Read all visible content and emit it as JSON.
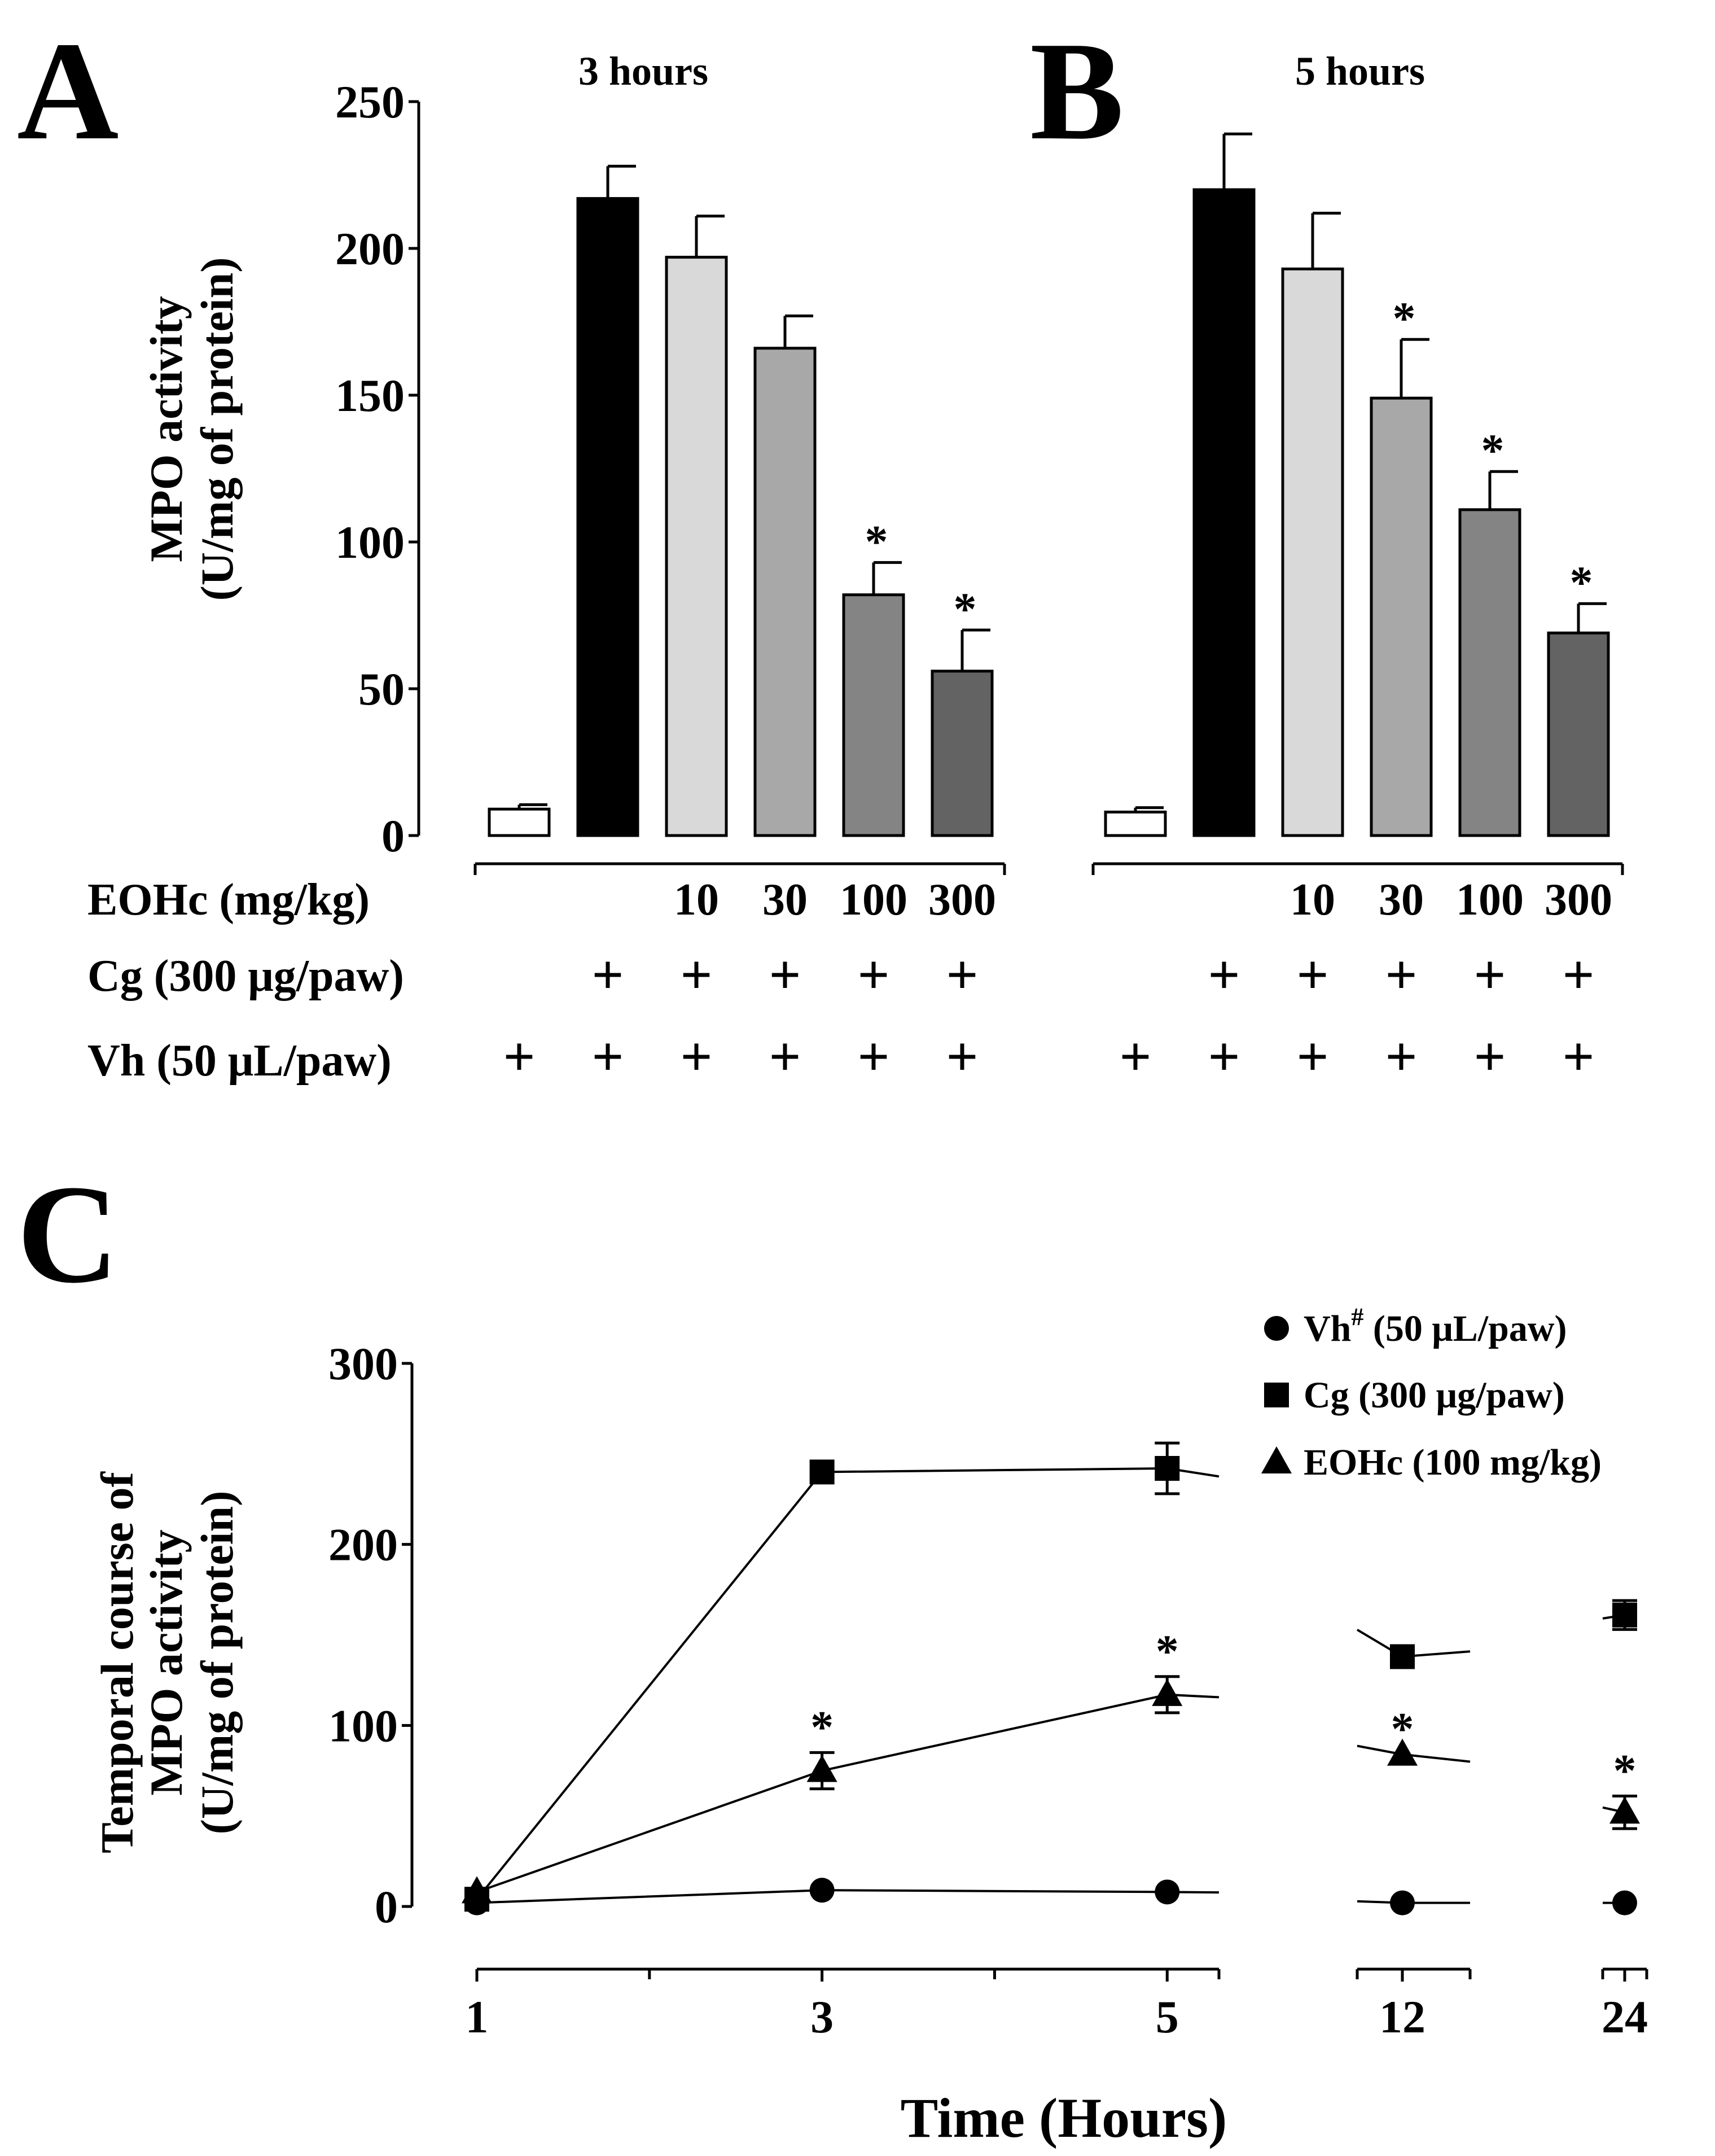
{
  "chart_data": [
    {
      "panel": "A",
      "type": "bar",
      "title": "3 hours",
      "ylabel": [
        "MPO activity",
        "(U/mg of protein)"
      ],
      "ylim": [
        0,
        250
      ],
      "yticks": [
        0,
        50,
        100,
        150,
        200,
        250
      ],
      "categories": [
        "Vh",
        "Cg",
        "EOHc 10",
        "EOHc 30",
        "EOHc 100",
        "EOHc 300"
      ],
      "values": [
        9,
        217,
        197,
        166,
        82,
        56
      ],
      "errors": [
        1.5,
        11,
        14,
        11,
        11,
        14
      ],
      "significant": [
        false,
        false,
        false,
        false,
        true,
        true
      ],
      "colors": [
        "#ffffff",
        "#000000",
        "#d9d9d9",
        "#a8a8a8",
        "#848484",
        "#636363"
      ],
      "treatment_rows": [
        {
          "label": "EOHc (mg/kg)",
          "cells": [
            "",
            "",
            "10",
            "30",
            "100",
            "300"
          ]
        },
        {
          "label": "Cg (300 μg/paw)",
          "cells": [
            "",
            "+",
            "+",
            "+",
            "+",
            "+"
          ]
        },
        {
          "label": "Vh (50 μL/paw)",
          "cells": [
            "+",
            "+",
            "+",
            "+",
            "+",
            "+"
          ]
        }
      ]
    },
    {
      "panel": "B",
      "type": "bar",
      "title": "5 hours",
      "ylim": [
        0,
        250
      ],
      "categories": [
        "Vh",
        "Cg",
        "EOHc 10",
        "EOHc 30",
        "EOHc 100",
        "EOHc 300"
      ],
      "values": [
        8,
        220,
        193,
        149,
        111,
        69
      ],
      "errors": [
        1.5,
        19,
        19,
        20,
        13,
        10
      ],
      "significant": [
        false,
        false,
        false,
        true,
        true,
        true
      ],
      "colors": [
        "#ffffff",
        "#000000",
        "#d9d9d9",
        "#a8a8a8",
        "#848484",
        "#636363"
      ],
      "treatment_rows": [
        {
          "label": "EOHc (mg/kg)",
          "cells": [
            "",
            "",
            "10",
            "30",
            "100",
            "300"
          ]
        },
        {
          "label": "Cg (300 μg/paw)",
          "cells": [
            "",
            "+",
            "+",
            "+",
            "+",
            "+"
          ]
        },
        {
          "label": "Vh (50 μL/paw)",
          "cells": [
            "+",
            "+",
            "+",
            "+",
            "+",
            "+"
          ]
        }
      ]
    },
    {
      "panel": "C",
      "type": "line",
      "ylabel": [
        "Temporal course of",
        "MPO activity",
        "(U/mg of protein)"
      ],
      "xlabel": "Time (Hours)",
      "ylim": [
        0,
        300
      ],
      "yticks": [
        0,
        100,
        200,
        300
      ],
      "x": [
        1,
        3,
        5,
        12,
        24
      ],
      "xticks": [
        "1",
        "3",
        "5",
        "12",
        "24"
      ],
      "series": [
        {
          "name": "Vh",
          "sup": "#",
          "suffix": " (50 μL/paw)",
          "marker": "circle",
          "values": [
            2,
            9,
            8,
            2,
            2
          ],
          "errors": [
            0,
            0,
            0,
            0,
            0
          ],
          "significant": [
            false,
            false,
            false,
            false,
            false
          ]
        },
        {
          "name": "Cg",
          "sup": "",
          "suffix": " (300 μg/paw)",
          "marker": "square",
          "values": [
            4,
            240,
            242,
            138,
            161
          ],
          "errors": [
            0,
            0,
            14,
            0,
            8
          ],
          "significant": [
            false,
            false,
            false,
            false,
            false
          ]
        },
        {
          "name": "EOHc",
          "sup": "",
          "suffix": " (100 mg/kg)",
          "marker": "triangle",
          "values": [
            8,
            75,
            117,
            84,
            52
          ],
          "errors": [
            0,
            10,
            10,
            0,
            9
          ],
          "significant": [
            false,
            true,
            true,
            true,
            true
          ]
        }
      ]
    }
  ]
}
